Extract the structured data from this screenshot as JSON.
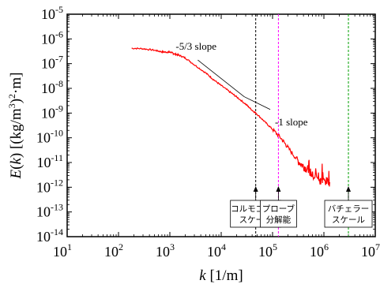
{
  "chart_data": {
    "type": "line",
    "title": "",
    "xlabel": "k [1/m]",
    "ylabel": "E(k) [(kg/m³)²·m]",
    "xscale": "log",
    "yscale": "log",
    "xlim": [
      10,
      10000000
    ],
    "ylim": [
      1e-14,
      1e-05
    ],
    "grid": false,
    "x_ticks": [
      {
        "value": 10,
        "base": "10",
        "exp": "1"
      },
      {
        "value": 100,
        "base": "10",
        "exp": "2"
      },
      {
        "value": 1000,
        "base": "10",
        "exp": "3"
      },
      {
        "value": 10000,
        "base": "10",
        "exp": "4"
      },
      {
        "value": 100000,
        "base": "10",
        "exp": "5"
      },
      {
        "value": 1000000,
        "base": "10",
        "exp": "6"
      },
      {
        "value": 10000000,
        "base": "10",
        "exp": "7"
      }
    ],
    "y_ticks": [
      {
        "value": 1e-05,
        "base": "10",
        "exp": "-5"
      },
      {
        "value": 1e-06,
        "base": "10",
        "exp": "-6"
      },
      {
        "value": 1e-07,
        "base": "10",
        "exp": "-7"
      },
      {
        "value": 1e-08,
        "base": "10",
        "exp": "-8"
      },
      {
        "value": 1e-09,
        "base": "10",
        "exp": "-9"
      },
      {
        "value": 1e-10,
        "base": "10",
        "exp": "-10"
      },
      {
        "value": 1e-11,
        "base": "10",
        "exp": "-11"
      },
      {
        "value": 1e-12,
        "base": "10",
        "exp": "-12"
      },
      {
        "value": 1e-13,
        "base": "10",
        "exp": "-13"
      },
      {
        "value": 1e-14,
        "base": "10",
        "exp": "-14"
      }
    ],
    "series": [
      {
        "color": "#ff0000",
        "points": [
          [
            180,
            4.2e-07
          ],
          [
            300,
            4e-07
          ],
          [
            500,
            3.5e-07
          ],
          [
            700,
            3e-07
          ],
          [
            900,
            2.9e-07
          ],
          [
            1050,
            2.9e-07
          ],
          [
            1200,
            2.5e-07
          ],
          [
            1500,
            2.2e-07
          ],
          [
            2000,
            1.7e-07
          ],
          [
            3000,
            9e-08
          ],
          [
            5000,
            4.2e-08
          ],
          [
            7000,
            2.3e-08
          ],
          [
            10000,
            1.3e-08
          ],
          [
            15000,
            7e-09
          ],
          [
            20000,
            4.5e-09
          ],
          [
            30000,
            2.3e-09
          ],
          [
            40000,
            1.3e-09
          ],
          [
            50000,
            9e-10
          ],
          [
            70000,
            4.5e-10
          ],
          [
            100000,
            2.2e-10
          ],
          [
            150000,
            9e-11
          ],
          [
            200000,
            4e-11
          ],
          [
            300000,
            1.3e-11
          ],
          [
            400000,
            7e-12
          ],
          [
            500000,
            5e-12
          ],
          [
            600000,
            3e-12
          ],
          [
            800000,
            2e-12
          ],
          [
            1000000,
            1.8e-12
          ],
          [
            1300000,
            1.6e-12
          ]
        ]
      }
    ],
    "reference_lines": [
      {
        "label": "-5/3 slope",
        "color": "#000000",
        "points": [
          [
            3500,
            1.4e-07
          ],
          [
            28000,
            4.6e-09
          ]
        ]
      },
      {
        "label": "-1 slope",
        "color": "#000000",
        "points": [
          [
            28000,
            4.6e-09
          ],
          [
            90000,
            1.4e-09
          ]
        ]
      }
    ],
    "vertical_markers": [
      {
        "x": 47000,
        "color": "#000000",
        "label_lines": [
          "コルモゴロフ",
          "スケール"
        ]
      },
      {
        "x": 130000,
        "color": "#ff00ff",
        "label_lines": [
          "プローブ",
          "分解能"
        ]
      },
      {
        "x": 3000000,
        "color": "#00a000",
        "label_lines": [
          "バチェラー",
          "スケール"
        ]
      }
    ]
  }
}
